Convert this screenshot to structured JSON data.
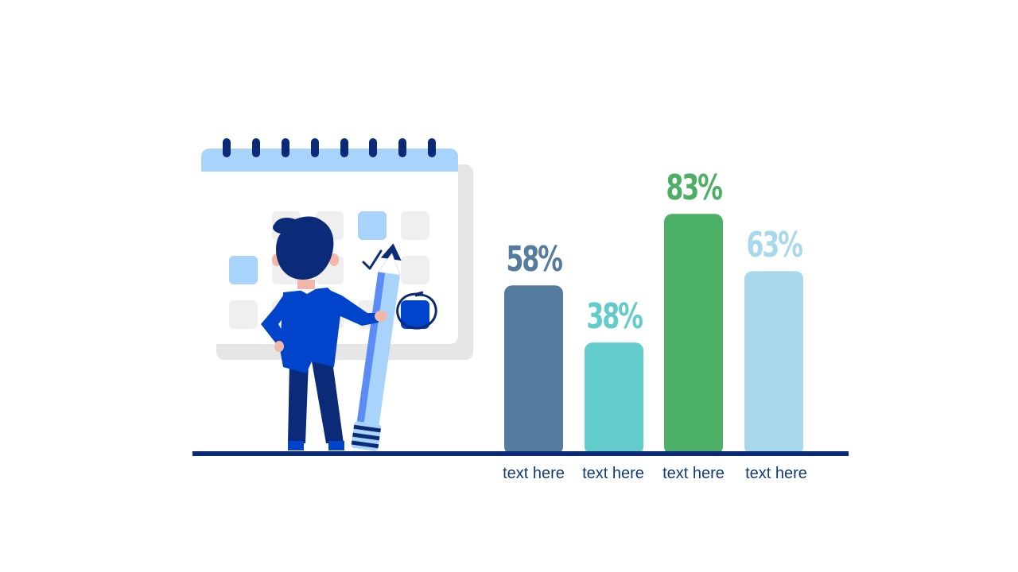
{
  "chart_data": {
    "type": "bar",
    "categories": [
      "text here",
      "text here",
      "text here",
      "text here"
    ],
    "values": [
      58,
      38,
      83,
      63
    ],
    "value_labels": [
      "58%",
      "38%",
      "83%",
      "63%"
    ],
    "ylim": [
      0,
      100
    ],
    "bar_colors": [
      "#557c9e",
      "#62cbcb",
      "#4caf66",
      "#a9d8ea"
    ],
    "label_colors": [
      "#557c9e",
      "#62cbcb",
      "#4caf66",
      "#a9d8ea"
    ],
    "grid": false,
    "legend": "none"
  },
  "illustration": {
    "description_icon": "businessman-with-pencil-and-calendar-icon"
  },
  "colors": {
    "baseline": "#0a2a78",
    "category_text": "#123a7a"
  }
}
